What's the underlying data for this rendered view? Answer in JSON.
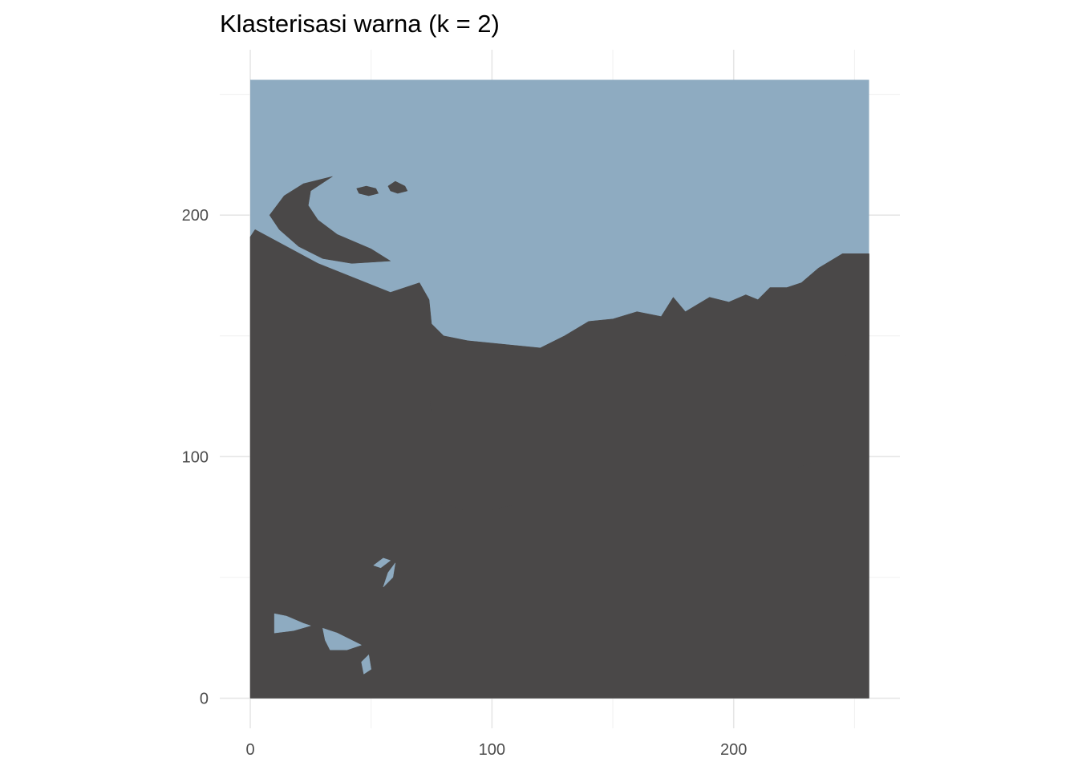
{
  "chart_data": {
    "type": "heatmap",
    "title": "Klasterisasi warna (k = 2)",
    "xlabel": "",
    "ylabel": "",
    "xlim": [
      0,
      256
    ],
    "ylim": [
      0,
      256
    ],
    "x_ticks": [
      0,
      100,
      200
    ],
    "y_ticks": [
      0,
      100,
      200
    ],
    "x_tick_labels": [
      "0",
      "100",
      "200"
    ],
    "y_tick_labels": [
      "0",
      "100",
      "200"
    ],
    "grid": true,
    "legend": "none",
    "clusters": [
      {
        "cluster": 1,
        "color": "#8eabc1"
      },
      {
        "cluster": 2,
        "color": "#4a4848"
      }
    ],
    "approx_regions": [
      {
        "cluster": 2,
        "points": [
          [
            0,
            191
          ],
          [
            2,
            194
          ],
          [
            28,
            180
          ],
          [
            48,
            172
          ],
          [
            58,
            168
          ],
          [
            70,
            172
          ],
          [
            74,
            165
          ],
          [
            75,
            155
          ],
          [
            80,
            150
          ],
          [
            90,
            148
          ],
          [
            100,
            147
          ],
          [
            110,
            146
          ],
          [
            120,
            145
          ],
          [
            130,
            150
          ],
          [
            140,
            156
          ],
          [
            150,
            157
          ],
          [
            160,
            160
          ],
          [
            170,
            158
          ],
          [
            175,
            166
          ],
          [
            180,
            160
          ],
          [
            185,
            163
          ],
          [
            190,
            166
          ],
          [
            198,
            164
          ],
          [
            205,
            167
          ],
          [
            210,
            165
          ],
          [
            215,
            170
          ],
          [
            222,
            170
          ],
          [
            228,
            172
          ],
          [
            235,
            178
          ],
          [
            245,
            184
          ],
          [
            256,
            184
          ],
          [
            256,
            98
          ],
          [
            240,
            100
          ],
          [
            225,
            95
          ],
          [
            210,
            92
          ],
          [
            200,
            94
          ],
          [
            190,
            90
          ],
          [
            180,
            92
          ],
          [
            170,
            89
          ],
          [
            160,
            92
          ],
          [
            150,
            88
          ],
          [
            140,
            90
          ],
          [
            130,
            86
          ],
          [
            120,
            84
          ],
          [
            110,
            80
          ],
          [
            100,
            78
          ],
          [
            88,
            78
          ],
          [
            75,
            82
          ],
          [
            74,
            90
          ],
          [
            76,
            100
          ],
          [
            77,
            110
          ],
          [
            75,
            118
          ],
          [
            74,
            125
          ],
          [
            78,
            126
          ],
          [
            76,
            128
          ],
          [
            75,
            138
          ],
          [
            74,
            146
          ],
          [
            70,
            148
          ],
          [
            0,
            148
          ]
        ]
      },
      {
        "cluster": 2,
        "points": [
          [
            0,
            148
          ],
          [
            70,
            148
          ],
          [
            74,
            146
          ],
          [
            75,
            138
          ],
          [
            76,
            128
          ],
          [
            78,
            126
          ],
          [
            74,
            125
          ],
          [
            75,
            118
          ],
          [
            77,
            110
          ],
          [
            76,
            100
          ],
          [
            74,
            90
          ],
          [
            75,
            82
          ],
          [
            88,
            78
          ],
          [
            100,
            78
          ],
          [
            110,
            80
          ],
          [
            120,
            84
          ],
          [
            130,
            86
          ],
          [
            140,
            90
          ],
          [
            150,
            88
          ],
          [
            160,
            92
          ],
          [
            170,
            89
          ],
          [
            180,
            92
          ],
          [
            190,
            90
          ],
          [
            200,
            94
          ],
          [
            210,
            92
          ],
          [
            225,
            95
          ],
          [
            240,
            100
          ],
          [
            256,
            98
          ],
          [
            256,
            0
          ],
          [
            0,
            0
          ]
        ]
      },
      {
        "cluster": 2,
        "points": [
          [
            8,
            200
          ],
          [
            14,
            208
          ],
          [
            22,
            213
          ],
          [
            30,
            215
          ],
          [
            34,
            216
          ],
          [
            25,
            210
          ],
          [
            24,
            204
          ],
          [
            28,
            198
          ],
          [
            36,
            192
          ],
          [
            50,
            186
          ],
          [
            58,
            181
          ],
          [
            42,
            180
          ],
          [
            30,
            182
          ],
          [
            20,
            187
          ],
          [
            12,
            194
          ]
        ]
      },
      {
        "cluster": 2,
        "points": [
          [
            44,
            211
          ],
          [
            48,
            212
          ],
          [
            52,
            211
          ],
          [
            53,
            209
          ],
          [
            49,
            208
          ],
          [
            45,
            209
          ]
        ]
      },
      {
        "cluster": 2,
        "points": [
          [
            57,
            212
          ],
          [
            60,
            214
          ],
          [
            64,
            212
          ],
          [
            65,
            210
          ],
          [
            61,
            209
          ],
          [
            58,
            210
          ]
        ]
      },
      {
        "cluster": 2,
        "points": [
          [
            240,
            168
          ],
          [
            246,
            174
          ],
          [
            252,
            182
          ],
          [
            256,
            184
          ],
          [
            256,
            140
          ],
          [
            245,
            142
          ],
          [
            240,
            150
          ]
        ]
      },
      {
        "cluster": 1,
        "points": [
          [
            10,
            35
          ],
          [
            15,
            34
          ],
          [
            22,
            31
          ],
          [
            25,
            30
          ],
          [
            18,
            28
          ],
          [
            10,
            27
          ]
        ]
      },
      {
        "cluster": 1,
        "points": [
          [
            30,
            29
          ],
          [
            36,
            27
          ],
          [
            42,
            24
          ],
          [
            46,
            22
          ],
          [
            40,
            20
          ],
          [
            33,
            20
          ],
          [
            31,
            24
          ]
        ]
      },
      {
        "cluster": 1,
        "points": [
          [
            51,
            55
          ],
          [
            55,
            58
          ],
          [
            58,
            57
          ],
          [
            54,
            54
          ]
        ]
      },
      {
        "cluster": 1,
        "points": [
          [
            55,
            46
          ],
          [
            57,
            52
          ],
          [
            60,
            56
          ],
          [
            59,
            50
          ]
        ]
      },
      {
        "cluster": 1,
        "points": [
          [
            46,
            15
          ],
          [
            49,
            18
          ],
          [
            50,
            12
          ],
          [
            47,
            10
          ]
        ]
      }
    ]
  }
}
